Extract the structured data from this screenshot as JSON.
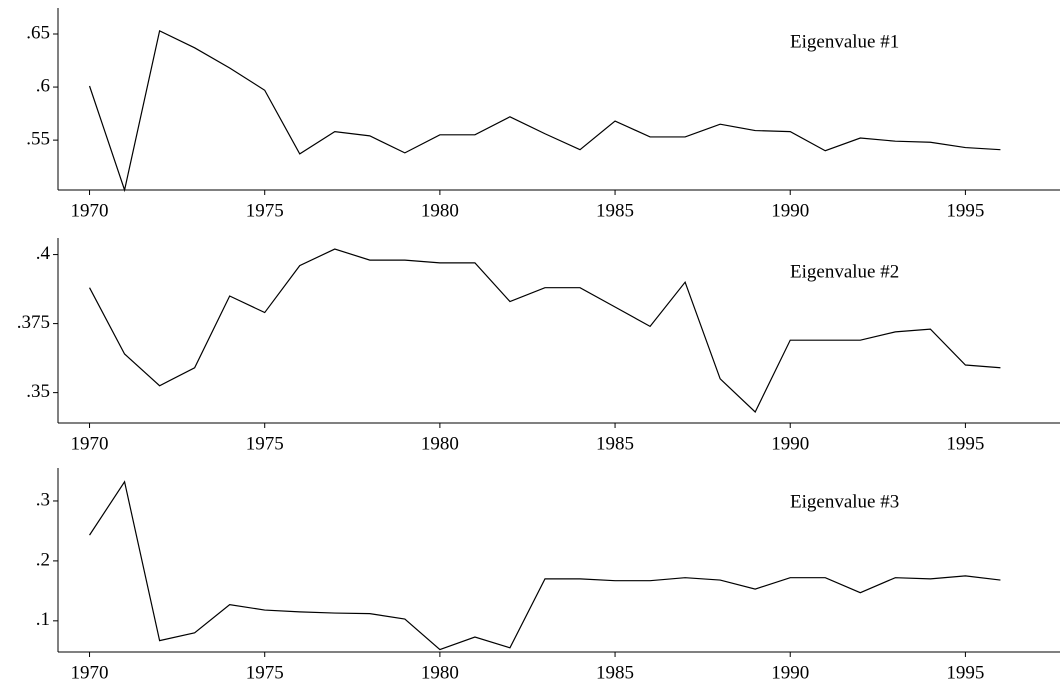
{
  "chart_data": [
    {
      "type": "line",
      "title": "Eigenvalue #1",
      "x": [
        1970,
        1971,
        1972,
        1973,
        1974,
        1975,
        1976,
        1977,
        1978,
        1979,
        1980,
        1981,
        1982,
        1983,
        1984,
        1985,
        1986,
        1987,
        1988,
        1989,
        1990,
        1991,
        1992,
        1993,
        1994,
        1995,
        1996
      ],
      "values": [
        0.601,
        0.503,
        0.653,
        0.637,
        0.618,
        0.597,
        0.537,
        0.558,
        0.554,
        0.538,
        0.555,
        0.555,
        0.572,
        0.556,
        0.541,
        0.568,
        0.553,
        0.553,
        0.565,
        0.559,
        0.558,
        0.54,
        0.552,
        0.549,
        0.548,
        0.543,
        0.541
      ],
      "color": "#000000",
      "xlim": [
        1969.1,
        1997.7
      ],
      "xticks": [
        1970,
        1975,
        1980,
        1985,
        1990,
        1995
      ],
      "ylim": [
        0.503,
        0.6745
      ],
      "yticks": [
        {
          "value": 0.55,
          "label": ".55"
        },
        {
          "value": 0.6,
          "label": ".6"
        },
        {
          "value": 0.65,
          "label": ".65"
        }
      ]
    },
    {
      "type": "line",
      "title": "Eigenvalue #2",
      "x": [
        1970,
        1971,
        1972,
        1973,
        1974,
        1975,
        1976,
        1977,
        1978,
        1979,
        1980,
        1981,
        1982,
        1983,
        1984,
        1985,
        1986,
        1987,
        1988,
        1989,
        1990,
        1991,
        1992,
        1993,
        1994,
        1995,
        1996
      ],
      "values": [
        0.388,
        0.364,
        0.3525,
        0.359,
        0.385,
        0.379,
        0.396,
        0.402,
        0.398,
        0.398,
        0.397,
        0.397,
        0.383,
        0.388,
        0.388,
        0.381,
        0.374,
        0.39,
        0.355,
        0.343,
        0.369,
        0.369,
        0.369,
        0.372,
        0.373,
        0.36,
        0.359
      ],
      "color": "#000000",
      "xlim": [
        1969.1,
        1997.7
      ],
      "xticks": [
        1970,
        1975,
        1980,
        1985,
        1990,
        1995
      ],
      "ylim": [
        0.339,
        0.406
      ],
      "yticks": [
        {
          "value": 0.35,
          "label": ".35"
        },
        {
          "value": 0.375,
          "label": ".375"
        },
        {
          "value": 0.4,
          "label": ".4"
        }
      ]
    },
    {
      "type": "line",
      "title": "Eigenvalue #3",
      "x": [
        1970,
        1971,
        1972,
        1973,
        1974,
        1975,
        1976,
        1977,
        1978,
        1979,
        1980,
        1981,
        1982,
        1983,
        1984,
        1985,
        1986,
        1987,
        1988,
        1989,
        1990,
        1991,
        1992,
        1993,
        1994,
        1995,
        1996
      ],
      "values": [
        0.243,
        0.332,
        0.067,
        0.08,
        0.127,
        0.118,
        0.115,
        0.113,
        0.112,
        0.103,
        0.052,
        0.073,
        0.055,
        0.17,
        0.17,
        0.167,
        0.167,
        0.172,
        0.168,
        0.153,
        0.172,
        0.172,
        0.147,
        0.172,
        0.17,
        0.175,
        0.168
      ],
      "color": "#000000",
      "xlim": [
        1969.1,
        1997.7
      ],
      "xticks": [
        1970,
        1975,
        1980,
        1985,
        1990,
        1995
      ],
      "ylim": [
        0.048,
        0.355
      ],
      "yticks": [
        {
          "value": 0.1,
          "label": ".1"
        },
        {
          "value": 0.2,
          "label": ".2"
        },
        {
          "value": 0.3,
          "label": ".3"
        }
      ]
    }
  ]
}
